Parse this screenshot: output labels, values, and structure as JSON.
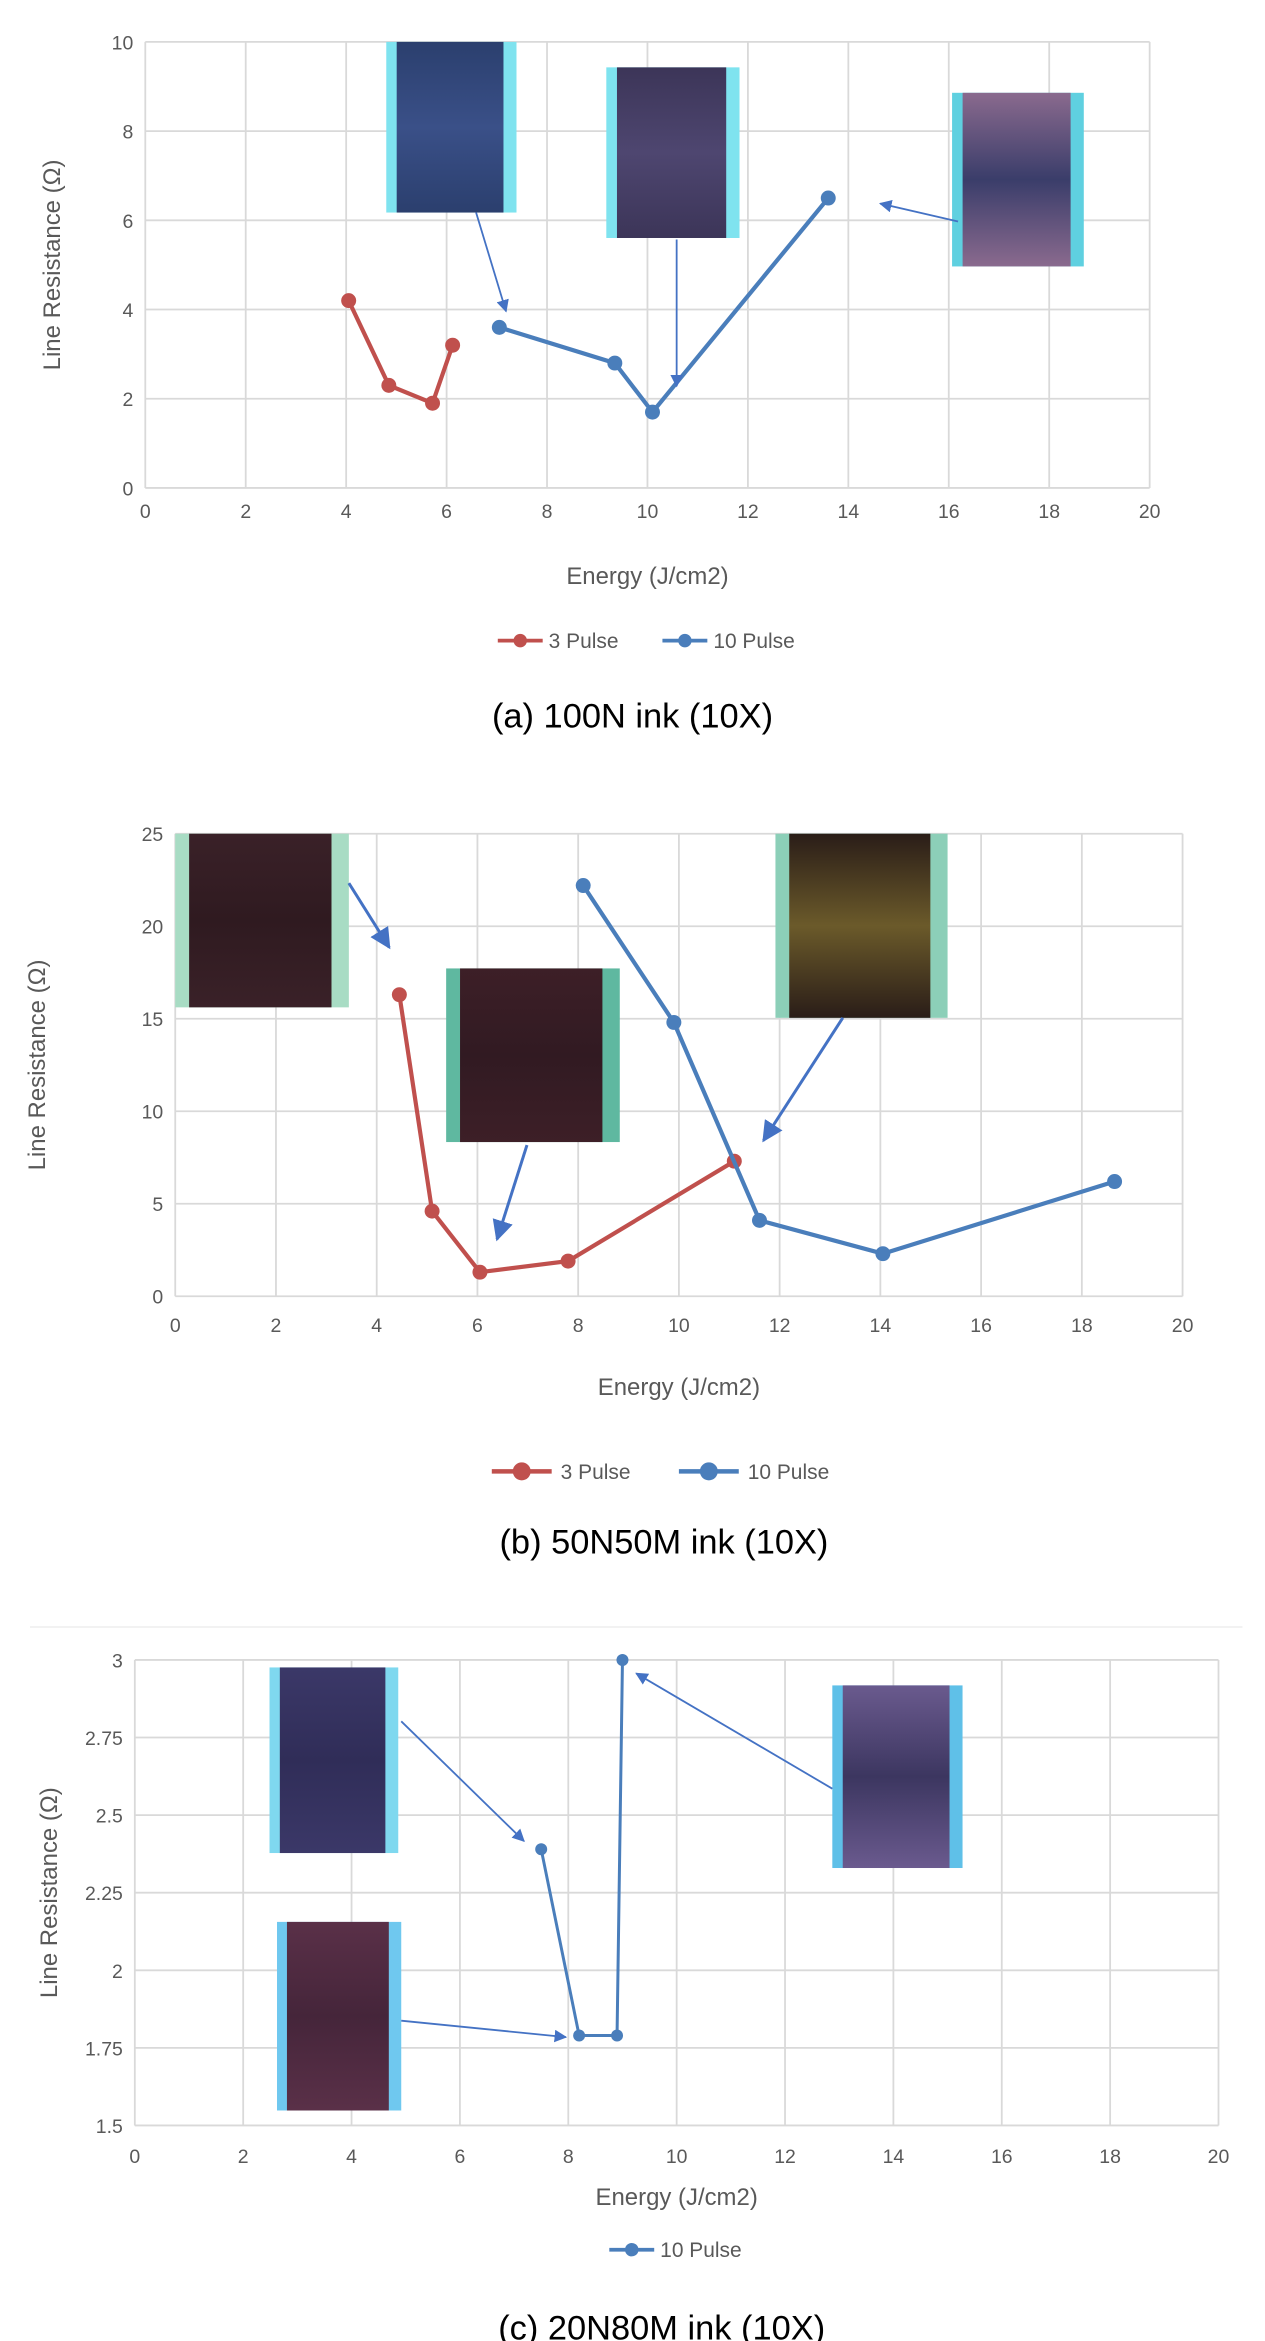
{
  "colors": {
    "pulse3": "#c0504d",
    "pulse10": "#4a7ebb",
    "grid": "#d9d9d9",
    "arrow": "#4472c4"
  },
  "chart_data": [
    {
      "type": "line",
      "caption": "(a) 100N ink (10X)",
      "xlabel": "Energy (J/cm2)",
      "ylabel": "Line Resistance (Ω)",
      "xlim": [
        0,
        20
      ],
      "ylim": [
        0,
        10
      ],
      "xticks": [
        "0",
        "2",
        "4",
        "6",
        "8",
        "10",
        "12",
        "14",
        "16",
        "18",
        "20"
      ],
      "yticks": [
        "0",
        "2",
        "4",
        "6",
        "8",
        "10"
      ],
      "grid": true,
      "legend": "bottom",
      "series": [
        {
          "name": "3 Pulse",
          "x": [
            4.05,
            4.85,
            5.72,
            6.12
          ],
          "y": [
            4.2,
            2.3,
            1.9,
            3.2
          ]
        },
        {
          "name": "10 Pulse",
          "x": [
            7.05,
            9.35,
            10.1,
            13.6
          ],
          "y": [
            3.6,
            2.8,
            1.7,
            6.5
          ]
        }
      ]
    },
    {
      "type": "line",
      "caption": "(b) 50N50M ink (10X)",
      "xlabel": "Energy (J/cm2)",
      "ylabel": "Line Resistance (Ω)",
      "xlim": [
        0,
        20
      ],
      "ylim": [
        0,
        25
      ],
      "xticks": [
        "0",
        "2",
        "4",
        "6",
        "8",
        "10",
        "12",
        "14",
        "16",
        "18",
        "20"
      ],
      "yticks": [
        "0",
        "5",
        "10",
        "15",
        "20",
        "25"
      ],
      "grid": true,
      "legend": "bottom",
      "series": [
        {
          "name": "3 Pulse",
          "x": [
            4.45,
            5.1,
            6.05,
            7.8,
            11.1
          ],
          "y": [
            16.3,
            4.6,
            1.3,
            1.9,
            7.3
          ]
        },
        {
          "name": "10 Pulse",
          "x": [
            8.1,
            9.9,
            11.6,
            14.05,
            18.65
          ],
          "y": [
            22.2,
            14.8,
            4.1,
            2.3,
            6.2
          ]
        }
      ]
    },
    {
      "type": "line",
      "caption": "(c) 20N80M ink (10X)",
      "xlabel": "Energy (J/cm2)",
      "ylabel": "Line Resistance (Ω)",
      "xlim": [
        0,
        20
      ],
      "ylim": [
        1.5,
        3
      ],
      "xticks": [
        "0",
        "2",
        "4",
        "6",
        "8",
        "10",
        "12",
        "14",
        "16",
        "18",
        "20"
      ],
      "yticks": [
        "1.5",
        "1.75",
        "2",
        "2.25",
        "2.5",
        "2.75",
        "3"
      ],
      "grid": true,
      "legend": "bottom",
      "series": [
        {
          "name": "10 Pulse",
          "x": [
            7.5,
            8.2,
            8.9,
            9.0
          ],
          "y": [
            2.39,
            1.79,
            1.79,
            3.0
          ]
        }
      ]
    }
  ]
}
